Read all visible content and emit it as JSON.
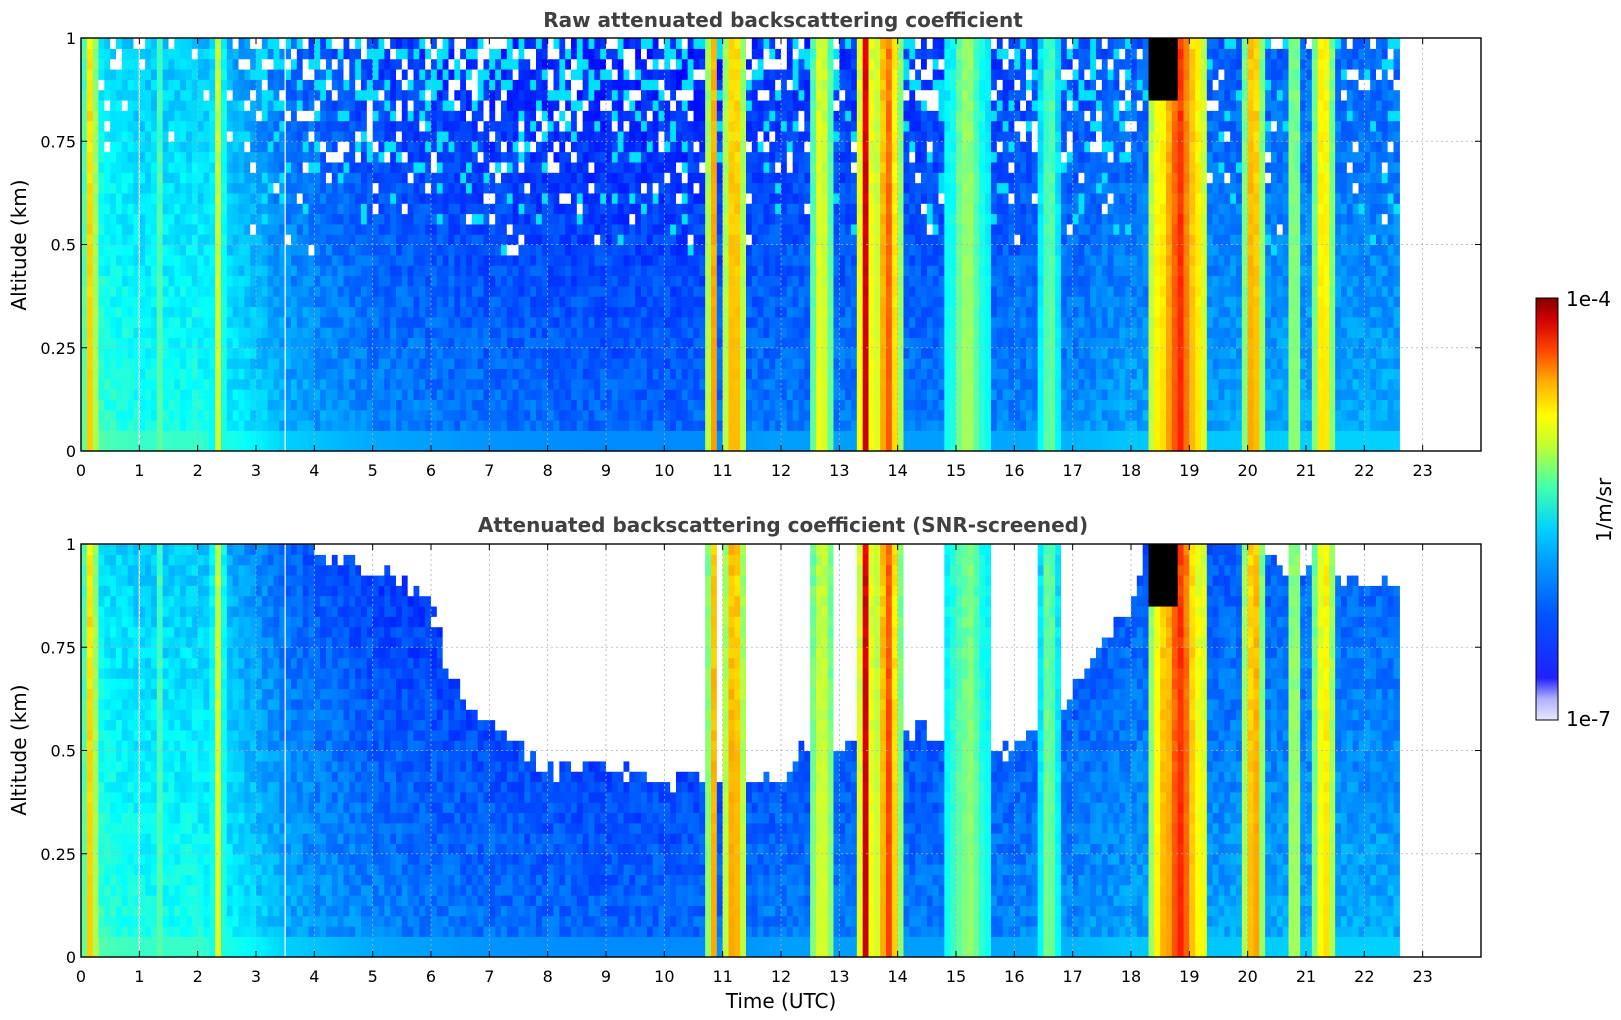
{
  "chart_data": [
    {
      "type": "heatmap",
      "title": "Raw attenuated backscattering coefficient",
      "xlabel": "",
      "ylabel": "Altitude (km)",
      "xlim": [
        0,
        24
      ],
      "ylim": [
        0,
        1
      ],
      "x_ticks": [
        "0",
        "1",
        "2",
        "3",
        "4",
        "5",
        "6",
        "7",
        "8",
        "9",
        "10",
        "11",
        "12",
        "13",
        "14",
        "15",
        "16",
        "17",
        "18",
        "19",
        "20",
        "21",
        "22",
        "23"
      ],
      "y_ticks": [
        "0",
        "0.25",
        "0.5",
        "0.75",
        "1"
      ],
      "data_end_time": 22.6,
      "grid": true,
      "screened": false,
      "background_level": [
        [
          0.0,
          0.5
        ],
        [
          0.4,
          0.42
        ],
        [
          1.0,
          0.4
        ],
        [
          2.0,
          0.4
        ],
        [
          2.7,
          0.36
        ],
        [
          3.5,
          0.3
        ],
        [
          5.0,
          0.26
        ],
        [
          7.0,
          0.24
        ],
        [
          9.0,
          0.23
        ],
        [
          10.5,
          0.23
        ],
        [
          12.0,
          0.25
        ],
        [
          15.0,
          0.25
        ],
        [
          17.0,
          0.27
        ],
        [
          18.0,
          0.29
        ],
        [
          19.5,
          0.29
        ],
        [
          21.0,
          0.3
        ],
        [
          22.6,
          0.3
        ]
      ],
      "cloud_bands": [
        {
          "t0": 0.05,
          "t1": 0.3,
          "level": 0.68
        },
        {
          "t0": 1.3,
          "t1": 1.45,
          "level": 0.5
        },
        {
          "t0": 2.25,
          "t1": 2.45,
          "level": 0.55
        },
        {
          "t0": 10.75,
          "t1": 10.9,
          "level": 0.8
        },
        {
          "t0": 11.0,
          "t1": 11.4,
          "level": 0.75
        },
        {
          "t0": 12.5,
          "t1": 12.9,
          "level": 0.63
        },
        {
          "t0": 13.35,
          "t1": 13.55,
          "level": 0.92
        },
        {
          "t0": 13.6,
          "t1": 14.05,
          "level": 0.8
        },
        {
          "t0": 14.8,
          "t1": 15.6,
          "level": 0.52
        },
        {
          "t0": 16.4,
          "t1": 16.8,
          "level": 0.5
        },
        {
          "t0": 18.35,
          "t1": 19.3,
          "level": 0.82
        },
        {
          "t0": 19.95,
          "t1": 20.25,
          "level": 0.78
        },
        {
          "t0": 20.7,
          "t1": 20.9,
          "level": 0.6
        },
        {
          "t0": 21.1,
          "t1": 21.5,
          "level": 0.68
        }
      ],
      "saturated_patch": {
        "t0": 18.3,
        "t1": 18.75,
        "alt_min": 0.85,
        "alt_max": 1.0
      }
    },
    {
      "type": "heatmap",
      "title": "Attenuated backscattering coefficient (SNR-screened)",
      "xlabel": "Time (UTC)",
      "ylabel": "Altitude (km)",
      "xlim": [
        0,
        24
      ],
      "ylim": [
        0,
        1
      ],
      "x_ticks": [
        "0",
        "1",
        "2",
        "3",
        "4",
        "5",
        "6",
        "7",
        "8",
        "9",
        "10",
        "11",
        "12",
        "13",
        "14",
        "15",
        "16",
        "17",
        "18",
        "19",
        "20",
        "21",
        "22",
        "23"
      ],
      "y_ticks": [
        "0",
        "0.25",
        "0.5",
        "0.75",
        "1"
      ],
      "data_end_time": 22.6,
      "grid": true,
      "screened": true,
      "screen_boundary": [
        [
          0.0,
          1.05
        ],
        [
          3.6,
          1.05
        ],
        [
          4.0,
          0.98
        ],
        [
          5.2,
          0.94
        ],
        [
          6.0,
          0.86
        ],
        [
          6.3,
          0.7
        ],
        [
          6.8,
          0.58
        ],
        [
          7.5,
          0.5
        ],
        [
          8.0,
          0.45
        ],
        [
          9.0,
          0.47
        ],
        [
          10.0,
          0.43
        ],
        [
          10.6,
          0.45
        ],
        [
          12.0,
          0.43
        ],
        [
          12.3,
          0.5
        ],
        [
          14.4,
          0.55
        ],
        [
          15.0,
          0.55
        ],
        [
          16.0,
          0.5
        ],
        [
          17.0,
          0.66
        ],
        [
          18.0,
          0.85
        ],
        [
          18.3,
          1.05
        ],
        [
          19.8,
          1.05
        ],
        [
          20.6,
          0.95
        ],
        [
          21.0,
          0.95
        ],
        [
          21.5,
          0.92
        ],
        [
          22.6,
          0.9
        ]
      ]
    }
  ],
  "colorbar": {
    "label": "1/m/sr",
    "max_label": "1e-4",
    "min_label": "1e-7",
    "scale": "log",
    "range": [
      1e-07,
      0.0001
    ],
    "colormap": "jet"
  }
}
